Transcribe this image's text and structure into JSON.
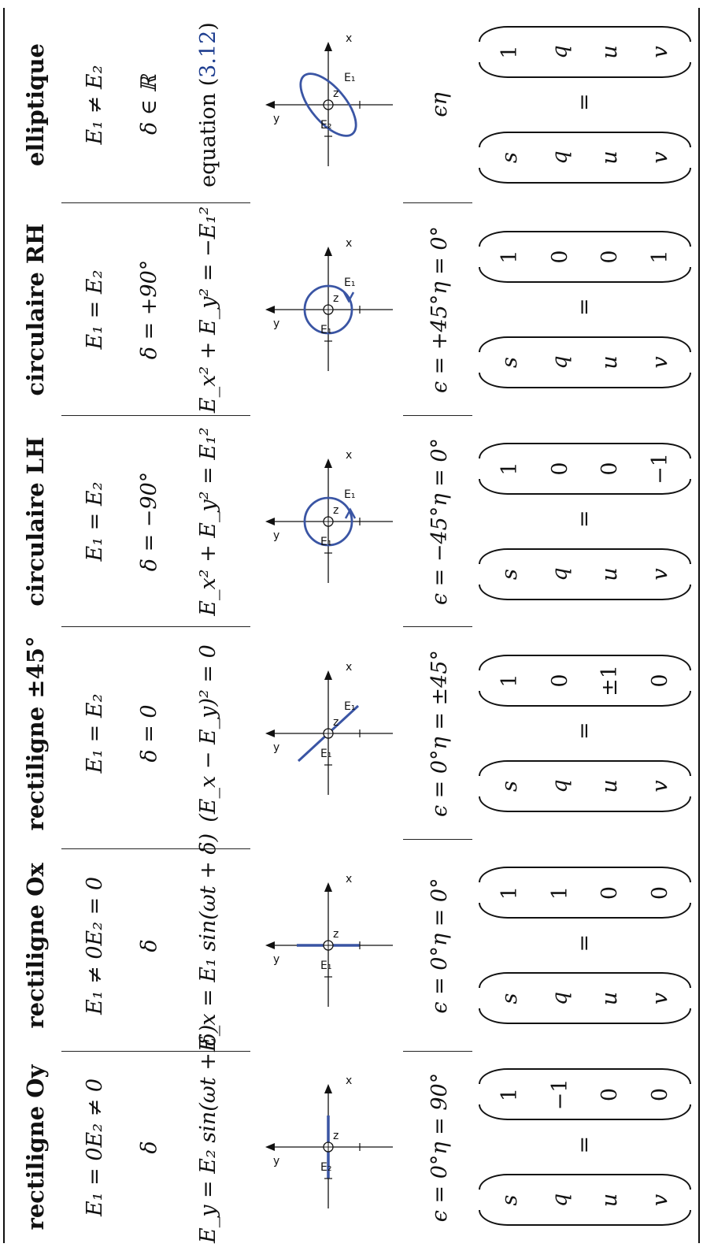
{
  "columns": [
    {
      "heading": "rectiligne Oy",
      "cond1": [
        "E₁ = 0",
        "E₂ ≠ 0"
      ],
      "phase": "δ",
      "equation": "E_y = E₂ sin(ωt + δ)",
      "angles": [
        "ϵ = 0°",
        "η = 90°"
      ],
      "stokes_symbols": [
        "s",
        "q",
        "u",
        "v"
      ],
      "stokes_values": [
        "1",
        "−1",
        "0",
        "0"
      ],
      "diagram": {
        "type": "line-y",
        "labels": [
          "y",
          "x",
          "z",
          "E₂"
        ]
      }
    },
    {
      "heading": "rectiligne Ox",
      "cond1": [
        "E₁ ≠ 0",
        "E₂ = 0"
      ],
      "phase": "δ",
      "equation": "E_x = E₁ sin(ωt + δ)",
      "angles": [
        "ϵ = 0°",
        "η = 0°"
      ],
      "stokes_symbols": [
        "s",
        "q",
        "u",
        "v"
      ],
      "stokes_values": [
        "1",
        "1",
        "0",
        "0"
      ],
      "diagram": {
        "type": "line-x",
        "labels": [
          "y",
          "x",
          "z",
          "E₁"
        ]
      }
    },
    {
      "heading": "rectiligne ±45°",
      "cond1": [
        "E₁ = E₂"
      ],
      "phase": "δ = 0",
      "equation": "(E_x − E_y)² = 0",
      "angles": [
        "ϵ = 0°",
        "η = ±45°"
      ],
      "stokes_symbols": [
        "s",
        "q",
        "u",
        "v"
      ],
      "stokes_values": [
        "1",
        "0",
        "±1",
        "0"
      ],
      "diagram": {
        "type": "diag",
        "labels": [
          "y",
          "x",
          "z",
          "E₁",
          "E₁"
        ]
      }
    },
    {
      "heading": "circulaire LH",
      "cond1": [
        "E₁ = E₂"
      ],
      "phase": "δ = −90°",
      "equation": "E_x² + E_y² = E₁²",
      "angles": [
        "ϵ = −45°",
        "η = 0°"
      ],
      "stokes_symbols": [
        "s",
        "q",
        "u",
        "v"
      ],
      "stokes_values": [
        "1",
        "0",
        "0",
        "−1"
      ],
      "diagram": {
        "type": "circle-lh",
        "labels": [
          "y",
          "x",
          "z",
          "E₁",
          "E₁"
        ]
      }
    },
    {
      "heading": "circulaire RH",
      "cond1": [
        "E₁ = E₂"
      ],
      "phase": "δ = +90°",
      "equation": "E_x² + E_y² = −E₁²",
      "angles": [
        "ϵ = +45°",
        "η = 0°"
      ],
      "stokes_symbols": [
        "s",
        "q",
        "u",
        "v"
      ],
      "stokes_values": [
        "1",
        "0",
        "0",
        "1"
      ],
      "diagram": {
        "type": "circle-rh",
        "labels": [
          "y",
          "x",
          "z",
          "E₁",
          "E₁"
        ]
      }
    },
    {
      "heading": "elliptique",
      "cond1": [
        "E₁ ≠ E₂"
      ],
      "phase": "δ ∈ ℝ",
      "equation_prefix": "equation (",
      "equation_ref": "3.12",
      "equation_suffix": ")",
      "angles": [
        "ϵ",
        "η"
      ],
      "stokes_symbols": [
        "s",
        "q",
        "u",
        "v"
      ],
      "stokes_values": [
        "1",
        "q",
        "u",
        "v"
      ],
      "diagram": {
        "type": "ellipse",
        "labels": [
          "y",
          "x",
          "z",
          "E₂",
          "E₁"
        ]
      }
    }
  ],
  "colors": {
    "curve": "#3a55a4",
    "ink": "#111111",
    "ref": "#1d3d8f"
  }
}
